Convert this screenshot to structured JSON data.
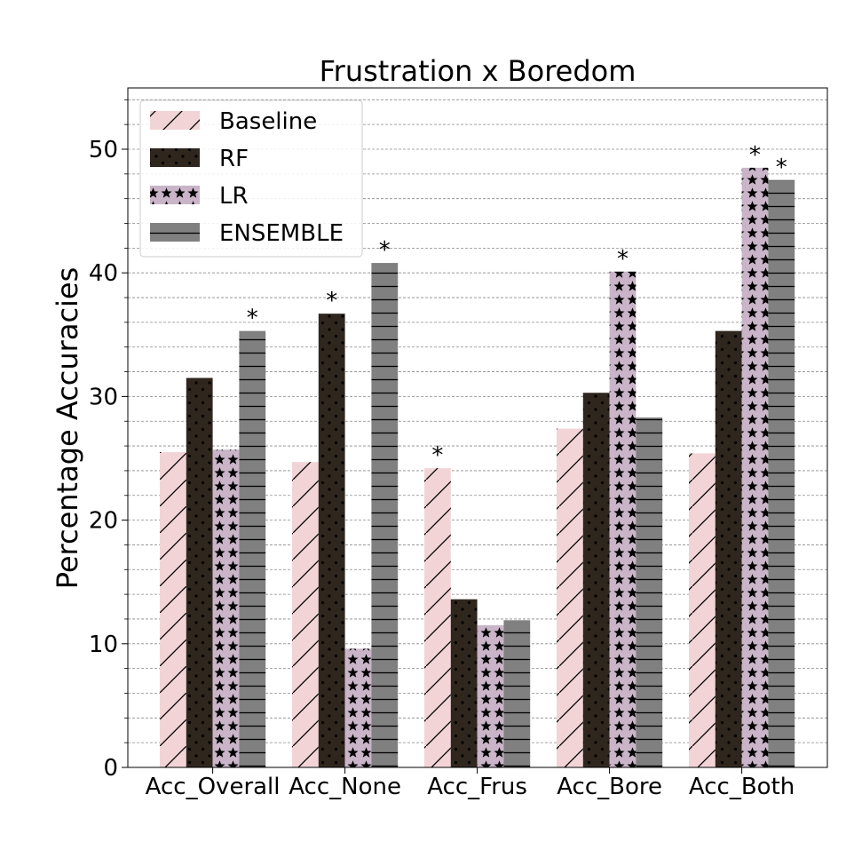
{
  "chart_data": {
    "type": "bar",
    "title": "Frustration x Boredom",
    "ylabel": "Percentage Accuracies",
    "xlabel": "",
    "categories": [
      "Acc_Overall",
      "Acc_None",
      "Acc_Frus",
      "Acc_Bore",
      "Acc_Both"
    ],
    "ylim": [
      0,
      55
    ],
    "yticks": [
      0,
      10,
      20,
      30,
      40,
      50
    ],
    "grid": "horizontal dashed (major and minor)",
    "legend": "upper-left",
    "series": [
      {
        "name": "Baseline",
        "values": [
          25.5,
          24.7,
          24.2,
          27.4,
          25.4
        ],
        "color": "#f2d4d7",
        "hatch": "diagonal",
        "significant": [
          false,
          false,
          true,
          false,
          false
        ]
      },
      {
        "name": "RF",
        "values": [
          31.5,
          36.7,
          13.6,
          30.3,
          35.3
        ],
        "color": "#2f261e",
        "hatch": "dots",
        "significant": [
          false,
          true,
          false,
          false,
          false
        ]
      },
      {
        "name": "LR",
        "values": [
          25.7,
          9.6,
          11.5,
          40.1,
          48.5
        ],
        "color": "#c9b4c8",
        "hatch": "stars",
        "significant": [
          false,
          false,
          false,
          true,
          true
        ]
      },
      {
        "name": "ENSEMBLE",
        "values": [
          35.3,
          40.8,
          11.9,
          28.3,
          47.5
        ],
        "color": "#808080",
        "hatch": "horizontal",
        "significant": [
          true,
          true,
          false,
          false,
          true
        ]
      }
    ],
    "significance_marker": "*"
  }
}
